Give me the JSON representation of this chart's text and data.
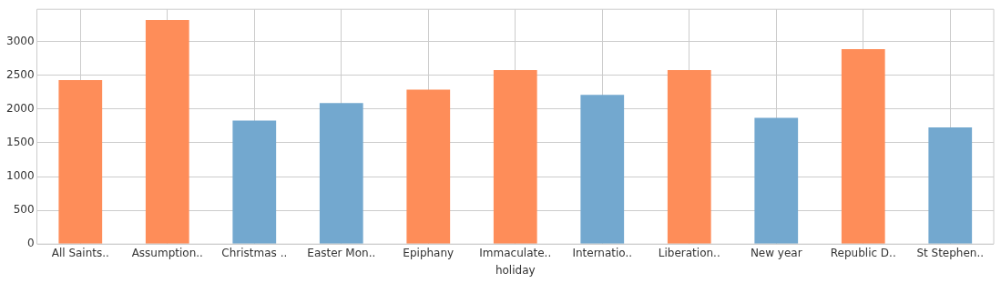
{
  "chart_data": {
    "type": "bar",
    "xlabel": "holiday",
    "categories": [
      "All Saints..",
      "Assumption..",
      "Christmas ..",
      "Easter Mon..",
      "Epiphany",
      "Immaculate..",
      "Internatio..",
      "Liberation..",
      "New year",
      "Republic D..",
      "St Stephen.."
    ],
    "values": [
      2430,
      3320,
      1830,
      2090,
      2290,
      2580,
      2210,
      2580,
      1870,
      2890,
      1730
    ],
    "colors": [
      "#fe8d59",
      "#fe8d59",
      "#73a8cf",
      "#73a8cf",
      "#fe8d59",
      "#fe8d59",
      "#73a8cf",
      "#fe8d59",
      "#73a8cf",
      "#fe8d59",
      "#73a8cf"
    ],
    "ylim": [
      0,
      3480
    ],
    "yticks": [
      0,
      500,
      1000,
      1500,
      2000,
      2500,
      3000
    ],
    "grid": true
  }
}
